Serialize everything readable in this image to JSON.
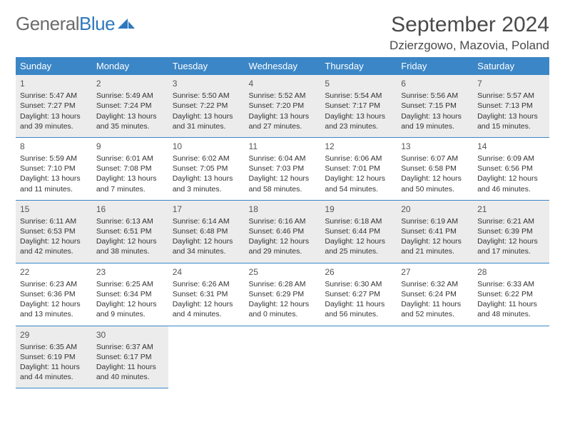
{
  "logo": {
    "text1": "General",
    "text2": "Blue"
  },
  "title": "September 2024",
  "location": "Dzierzgowo, Mazovia, Poland",
  "headers": [
    "Sunday",
    "Monday",
    "Tuesday",
    "Wednesday",
    "Thursday",
    "Friday",
    "Saturday"
  ],
  "colors": {
    "header_bg": "#3b86c6",
    "header_fg": "#ffffff",
    "shaded_bg": "#ececec",
    "text": "#333333",
    "logo_gray": "#6b6b6b",
    "logo_blue": "#2f78bd"
  },
  "weeks": [
    {
      "shaded": true,
      "days": [
        {
          "n": "1",
          "sunrise": "Sunrise: 5:47 AM",
          "sunset": "Sunset: 7:27 PM",
          "day": "Daylight: 13 hours and 39 minutes."
        },
        {
          "n": "2",
          "sunrise": "Sunrise: 5:49 AM",
          "sunset": "Sunset: 7:24 PM",
          "day": "Daylight: 13 hours and 35 minutes."
        },
        {
          "n": "3",
          "sunrise": "Sunrise: 5:50 AM",
          "sunset": "Sunset: 7:22 PM",
          "day": "Daylight: 13 hours and 31 minutes."
        },
        {
          "n": "4",
          "sunrise": "Sunrise: 5:52 AM",
          "sunset": "Sunset: 7:20 PM",
          "day": "Daylight: 13 hours and 27 minutes."
        },
        {
          "n": "5",
          "sunrise": "Sunrise: 5:54 AM",
          "sunset": "Sunset: 7:17 PM",
          "day": "Daylight: 13 hours and 23 minutes."
        },
        {
          "n": "6",
          "sunrise": "Sunrise: 5:56 AM",
          "sunset": "Sunset: 7:15 PM",
          "day": "Daylight: 13 hours and 19 minutes."
        },
        {
          "n": "7",
          "sunrise": "Sunrise: 5:57 AM",
          "sunset": "Sunset: 7:13 PM",
          "day": "Daylight: 13 hours and 15 minutes."
        }
      ]
    },
    {
      "shaded": false,
      "days": [
        {
          "n": "8",
          "sunrise": "Sunrise: 5:59 AM",
          "sunset": "Sunset: 7:10 PM",
          "day": "Daylight: 13 hours and 11 minutes."
        },
        {
          "n": "9",
          "sunrise": "Sunrise: 6:01 AM",
          "sunset": "Sunset: 7:08 PM",
          "day": "Daylight: 13 hours and 7 minutes."
        },
        {
          "n": "10",
          "sunrise": "Sunrise: 6:02 AM",
          "sunset": "Sunset: 7:05 PM",
          "day": "Daylight: 13 hours and 3 minutes."
        },
        {
          "n": "11",
          "sunrise": "Sunrise: 6:04 AM",
          "sunset": "Sunset: 7:03 PM",
          "day": "Daylight: 12 hours and 58 minutes."
        },
        {
          "n": "12",
          "sunrise": "Sunrise: 6:06 AM",
          "sunset": "Sunset: 7:01 PM",
          "day": "Daylight: 12 hours and 54 minutes."
        },
        {
          "n": "13",
          "sunrise": "Sunrise: 6:07 AM",
          "sunset": "Sunset: 6:58 PM",
          "day": "Daylight: 12 hours and 50 minutes."
        },
        {
          "n": "14",
          "sunrise": "Sunrise: 6:09 AM",
          "sunset": "Sunset: 6:56 PM",
          "day": "Daylight: 12 hours and 46 minutes."
        }
      ]
    },
    {
      "shaded": true,
      "days": [
        {
          "n": "15",
          "sunrise": "Sunrise: 6:11 AM",
          "sunset": "Sunset: 6:53 PM",
          "day": "Daylight: 12 hours and 42 minutes."
        },
        {
          "n": "16",
          "sunrise": "Sunrise: 6:13 AM",
          "sunset": "Sunset: 6:51 PM",
          "day": "Daylight: 12 hours and 38 minutes."
        },
        {
          "n": "17",
          "sunrise": "Sunrise: 6:14 AM",
          "sunset": "Sunset: 6:48 PM",
          "day": "Daylight: 12 hours and 34 minutes."
        },
        {
          "n": "18",
          "sunrise": "Sunrise: 6:16 AM",
          "sunset": "Sunset: 6:46 PM",
          "day": "Daylight: 12 hours and 29 minutes."
        },
        {
          "n": "19",
          "sunrise": "Sunrise: 6:18 AM",
          "sunset": "Sunset: 6:44 PM",
          "day": "Daylight: 12 hours and 25 minutes."
        },
        {
          "n": "20",
          "sunrise": "Sunrise: 6:19 AM",
          "sunset": "Sunset: 6:41 PM",
          "day": "Daylight: 12 hours and 21 minutes."
        },
        {
          "n": "21",
          "sunrise": "Sunrise: 6:21 AM",
          "sunset": "Sunset: 6:39 PM",
          "day": "Daylight: 12 hours and 17 minutes."
        }
      ]
    },
    {
      "shaded": false,
      "days": [
        {
          "n": "22",
          "sunrise": "Sunrise: 6:23 AM",
          "sunset": "Sunset: 6:36 PM",
          "day": "Daylight: 12 hours and 13 minutes."
        },
        {
          "n": "23",
          "sunrise": "Sunrise: 6:25 AM",
          "sunset": "Sunset: 6:34 PM",
          "day": "Daylight: 12 hours and 9 minutes."
        },
        {
          "n": "24",
          "sunrise": "Sunrise: 6:26 AM",
          "sunset": "Sunset: 6:31 PM",
          "day": "Daylight: 12 hours and 4 minutes."
        },
        {
          "n": "25",
          "sunrise": "Sunrise: 6:28 AM",
          "sunset": "Sunset: 6:29 PM",
          "day": "Daylight: 12 hours and 0 minutes."
        },
        {
          "n": "26",
          "sunrise": "Sunrise: 6:30 AM",
          "sunset": "Sunset: 6:27 PM",
          "day": "Daylight: 11 hours and 56 minutes."
        },
        {
          "n": "27",
          "sunrise": "Sunrise: 6:32 AM",
          "sunset": "Sunset: 6:24 PM",
          "day": "Daylight: 11 hours and 52 minutes."
        },
        {
          "n": "28",
          "sunrise": "Sunrise: 6:33 AM",
          "sunset": "Sunset: 6:22 PM",
          "day": "Daylight: 11 hours and 48 minutes."
        }
      ]
    },
    {
      "shaded": true,
      "days": [
        {
          "n": "29",
          "sunrise": "Sunrise: 6:35 AM",
          "sunset": "Sunset: 6:19 PM",
          "day": "Daylight: 11 hours and 44 minutes."
        },
        {
          "n": "30",
          "sunrise": "Sunrise: 6:37 AM",
          "sunset": "Sunset: 6:17 PM",
          "day": "Daylight: 11 hours and 40 minutes."
        },
        null,
        null,
        null,
        null,
        null
      ]
    }
  ]
}
